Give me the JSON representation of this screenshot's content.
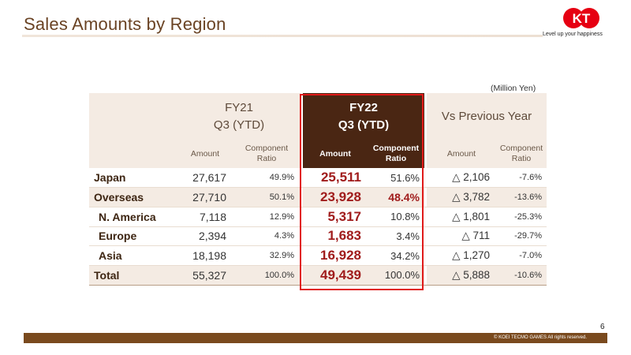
{
  "page": {
    "title": "Sales Amounts by Region",
    "unit": "(Million Yen)",
    "page_number": "6",
    "copyright": "© KOEI TECMO GAMES All rights reserved.",
    "logo": {
      "letters": "KT",
      "tagline": "Level up your happiness",
      "color": "#e60012"
    }
  },
  "table": {
    "groups": {
      "fy21": [
        "FY21",
        "Q3 (YTD)"
      ],
      "fy22": [
        "FY22",
        "Q3 (YTD)"
      ],
      "vs": "Vs Previous Year"
    },
    "subheaders": {
      "amount": "Amount",
      "ratio_line1": "Component",
      "ratio_line2": "Ratio"
    },
    "rows": [
      {
        "label": "Japan",
        "fy21_amount": "27,617",
        "fy21_ratio": "49.9%",
        "fy22_amount": "25,511",
        "fy22_ratio": "51.6%",
        "vs_amount": "△ 2,106",
        "vs_ratio": "-7.6%"
      },
      {
        "label": "Overseas",
        "fy21_amount": "27,710",
        "fy21_ratio": "50.1%",
        "fy22_amount": "23,928",
        "fy22_ratio": "48.4%",
        "vs_amount": "△ 3,782",
        "vs_ratio": "-13.6%"
      },
      {
        "label": "N. America",
        "fy21_amount": "7,118",
        "fy21_ratio": "12.9%",
        "fy22_amount": "5,317",
        "fy22_ratio": "10.8%",
        "vs_amount": "△ 1,801",
        "vs_ratio": "-25.3%"
      },
      {
        "label": "Europe",
        "fy21_amount": "2,394",
        "fy21_ratio": "4.3%",
        "fy22_amount": "1,683",
        "fy22_ratio": "3.4%",
        "vs_amount": "△ 711",
        "vs_ratio": "-29.7%"
      },
      {
        "label": "Asia",
        "fy21_amount": "18,198",
        "fy21_ratio": "32.9%",
        "fy22_amount": "16,928",
        "fy22_ratio": "34.2%",
        "vs_amount": "△ 1,270",
        "vs_ratio": "-7.0%"
      },
      {
        "label": "Total",
        "fy21_amount": "55,327",
        "fy21_ratio": "100.0%",
        "fy22_amount": "49,439",
        "fy22_ratio": "100.0%",
        "vs_amount": "△ 5,888",
        "vs_ratio": "-10.6%"
      }
    ]
  },
  "colors": {
    "highlight_red": "#a01c1c",
    "box_red": "#e01a1a",
    "header_brown": "#4a2613",
    "footer_brown": "#7a4a1e",
    "shade": "#f4ebe3"
  }
}
